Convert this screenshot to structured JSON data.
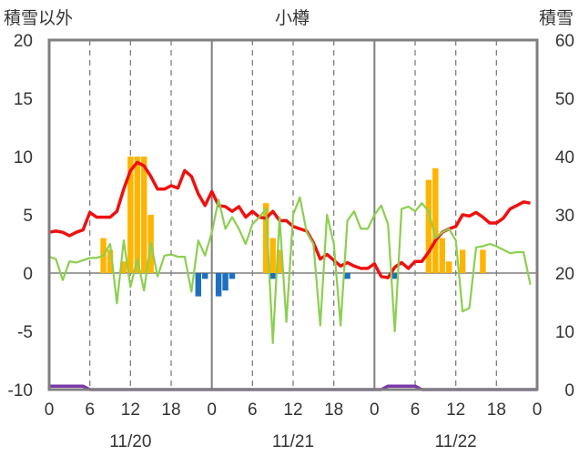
{
  "chart_data": {
    "type": "bar+line",
    "title": "小樽",
    "left_axis_label": "積雪以外",
    "right_axis_label": "積雪",
    "left_ylim": [
      -10,
      20
    ],
    "left_ticks": [
      "20",
      "15",
      "10",
      "5",
      "0",
      "-5",
      "-10"
    ],
    "right_ylim": [
      0,
      60
    ],
    "right_ticks": [
      "60",
      "50",
      "40",
      "30",
      "20",
      "10",
      "0"
    ],
    "xlim": [
      0,
      72
    ],
    "x_tick_labels": [
      "0",
      "6",
      "12",
      "18",
      "0",
      "6",
      "12",
      "18",
      "0",
      "6",
      "12",
      "18",
      "0"
    ],
    "date_labels": [
      {
        "hour": 12,
        "label": "11/20"
      },
      {
        "hour": 36,
        "label": "11/21"
      },
      {
        "hour": 60,
        "label": "11/22"
      }
    ],
    "grid": {
      "day_lines": [
        0,
        24,
        48,
        72
      ],
      "dashed": [
        6,
        12,
        18,
        30,
        36,
        42,
        54,
        60,
        66
      ],
      "zero_line": true
    },
    "colors": {
      "snowfall": "#ffb400",
      "negative": "#1e6fc0",
      "temperature": "#ee1111",
      "green_line": "#8ccf4f",
      "snow_depth": "#7a3aa6",
      "frame": "#7f7f7f"
    },
    "series": [
      {
        "kind": "bar",
        "color_key": "snowfall",
        "points": [
          [
            8,
            3
          ],
          [
            9,
            2
          ],
          [
            11,
            1
          ],
          [
            12,
            10
          ],
          [
            13,
            10
          ],
          [
            14,
            10
          ],
          [
            15,
            5
          ],
          [
            32,
            6
          ],
          [
            33,
            3
          ],
          [
            34,
            2
          ],
          [
            56,
            8
          ],
          [
            57,
            9
          ],
          [
            58,
            3
          ],
          [
            59,
            1
          ],
          [
            61,
            2
          ],
          [
            64,
            2
          ]
        ]
      },
      {
        "kind": "bar",
        "color_key": "negative",
        "points": [
          [
            22,
            -2
          ],
          [
            23,
            -0.5
          ],
          [
            25,
            -2
          ],
          [
            26,
            -1.5
          ],
          [
            27,
            -0.5
          ],
          [
            33,
            -0.5
          ],
          [
            44,
            -0.5
          ],
          [
            51,
            -0.5
          ]
        ]
      },
      {
        "kind": "line",
        "color_key": "temperature",
        "axis": "left",
        "points": [
          [
            0,
            3.5
          ],
          [
            1,
            3.6
          ],
          [
            2,
            3.5
          ],
          [
            3,
            3.2
          ],
          [
            4,
            3.5
          ],
          [
            5,
            3.7
          ],
          [
            6,
            5.2
          ],
          [
            7,
            4.8
          ],
          [
            8,
            4.8
          ],
          [
            9,
            4.8
          ],
          [
            10,
            5.3
          ],
          [
            11,
            7.2
          ],
          [
            12,
            8.8
          ],
          [
            13,
            9.5
          ],
          [
            14,
            9.2
          ],
          [
            15,
            8.3
          ],
          [
            16,
            7.2
          ],
          [
            17,
            7.2
          ],
          [
            18,
            7.5
          ],
          [
            19,
            7.3
          ],
          [
            20,
            8.8
          ],
          [
            21,
            8.3
          ],
          [
            22,
            6.8
          ],
          [
            23,
            5.8
          ],
          [
            24,
            7.0
          ],
          [
            25,
            5.8
          ],
          [
            26,
            5.7
          ],
          [
            27,
            5.3
          ],
          [
            28,
            5.7
          ],
          [
            29,
            4.8
          ],
          [
            30,
            5.3
          ],
          [
            31,
            4.8
          ],
          [
            32,
            4.7
          ],
          [
            33,
            5.3
          ],
          [
            34,
            4.5
          ],
          [
            35,
            4.5
          ],
          [
            36,
            4.0
          ],
          [
            37,
            3.8
          ],
          [
            38,
            3.6
          ],
          [
            39,
            2.6
          ],
          [
            40,
            1.2
          ],
          [
            41,
            1.6
          ],
          [
            42,
            1.1
          ],
          [
            43,
            0.6
          ],
          [
            44,
            0.9
          ],
          [
            45,
            0.6
          ],
          [
            46,
            0.4
          ],
          [
            47,
            0.4
          ],
          [
            48,
            0.8
          ],
          [
            49,
            -0.3
          ],
          [
            50,
            -0.4
          ],
          [
            51,
            0.5
          ],
          [
            52,
            0.9
          ],
          [
            53,
            0.4
          ],
          [
            54,
            1.0
          ],
          [
            55,
            1.0
          ],
          [
            56,
            1.8
          ],
          [
            57,
            2.8
          ],
          [
            58,
            3.5
          ],
          [
            59,
            3.8
          ],
          [
            60,
            4.0
          ],
          [
            61,
            5.0
          ],
          [
            62,
            4.9
          ],
          [
            63,
            5.2
          ],
          [
            64,
            4.8
          ],
          [
            65,
            4.3
          ],
          [
            66,
            4.3
          ],
          [
            67,
            4.7
          ],
          [
            68,
            5.5
          ],
          [
            69,
            5.8
          ],
          [
            70,
            6.1
          ],
          [
            71,
            6.0
          ]
        ]
      },
      {
        "kind": "line",
        "color_key": "green_line",
        "axis": "left",
        "points": [
          [
            0,
            1.4
          ],
          [
            1,
            1.2
          ],
          [
            2,
            -0.6
          ],
          [
            3,
            1.0
          ],
          [
            4,
            0.9
          ],
          [
            5,
            1.1
          ],
          [
            6,
            1.3
          ],
          [
            7,
            1.3
          ],
          [
            8,
            1.5
          ],
          [
            9,
            2.5
          ],
          [
            10,
            -2.6
          ],
          [
            11,
            2.8
          ],
          [
            12,
            -1.2
          ],
          [
            13,
            1.2
          ],
          [
            14,
            -1.5
          ],
          [
            15,
            2.6
          ],
          [
            16,
            -0.3
          ],
          [
            17,
            1.5
          ],
          [
            18,
            1.6
          ],
          [
            19,
            1.4
          ],
          [
            20,
            1.4
          ],
          [
            21,
            -1.6
          ],
          [
            22,
            2.8
          ],
          [
            23,
            1.5
          ],
          [
            24,
            3.5
          ],
          [
            25,
            6.3
          ],
          [
            26,
            3.8
          ],
          [
            27,
            4.8
          ],
          [
            28,
            3.8
          ],
          [
            29,
            2.5
          ],
          [
            30,
            4.2
          ],
          [
            31,
            4.8
          ],
          [
            32,
            5.5
          ],
          [
            33,
            -6.0
          ],
          [
            34,
            4.8
          ],
          [
            35,
            -4.2
          ],
          [
            36,
            5.0
          ],
          [
            37,
            6.5
          ],
          [
            38,
            3.5
          ],
          [
            39,
            2.5
          ],
          [
            40,
            -4.5
          ],
          [
            41,
            5.0
          ],
          [
            42,
            2.5
          ],
          [
            43,
            -4.5
          ],
          [
            44,
            4.5
          ],
          [
            45,
            5.3
          ],
          [
            46,
            3.8
          ],
          [
            47,
            3.8
          ],
          [
            48,
            5.0
          ],
          [
            49,
            5.8
          ],
          [
            50,
            4.2
          ],
          [
            51,
            -5.0
          ],
          [
            52,
            5.5
          ],
          [
            53,
            5.7
          ],
          [
            54,
            5.3
          ],
          [
            55,
            6.0
          ],
          [
            56,
            5.3
          ],
          [
            57,
            3.0
          ],
          [
            58,
            3.5
          ],
          [
            59,
            3.8
          ],
          [
            60,
            2.8
          ],
          [
            61,
            -3.3
          ],
          [
            62,
            -3.0
          ],
          [
            63,
            2.2
          ],
          [
            64,
            2.3
          ],
          [
            65,
            2.5
          ],
          [
            66,
            2.3
          ],
          [
            67,
            2.0
          ],
          [
            68,
            1.7
          ],
          [
            69,
            1.8
          ],
          [
            70,
            1.8
          ],
          [
            71,
            -1.0
          ]
        ]
      },
      {
        "kind": "line",
        "color_key": "snow_depth",
        "axis": "right",
        "points": [
          [
            0,
            0.6
          ],
          [
            5,
            0.6
          ],
          [
            6,
            0
          ],
          [
            49,
            0
          ],
          [
            50,
            0.6
          ],
          [
            54,
            0.6
          ],
          [
            55,
            0
          ],
          [
            72,
            0
          ]
        ]
      }
    ]
  }
}
